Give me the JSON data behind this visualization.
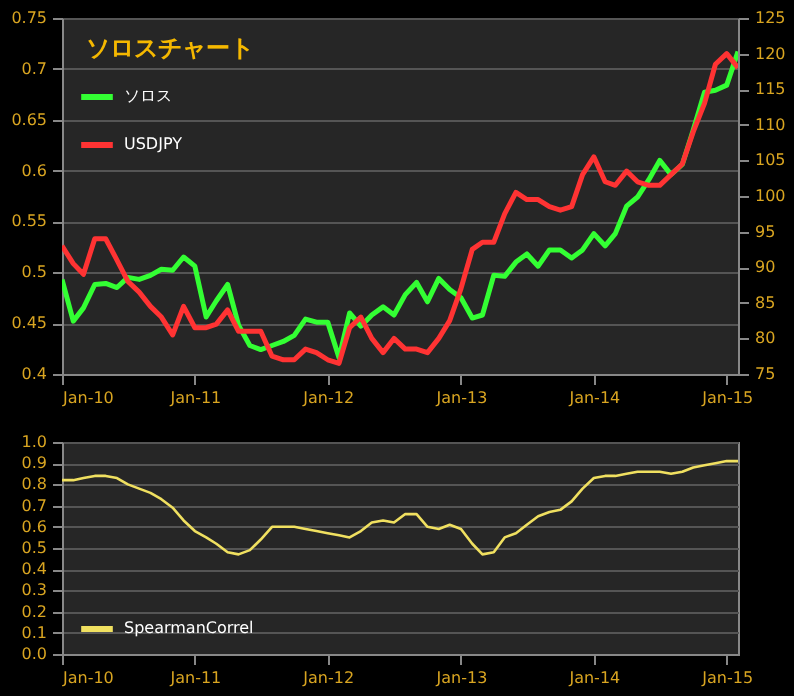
{
  "chart_data": [
    {
      "type": "line",
      "title": "ソロスチャート",
      "x": [
        "2010-01",
        "2010-02",
        "2010-03",
        "2010-04",
        "2010-05",
        "2010-06",
        "2010-07",
        "2010-08",
        "2010-09",
        "2010-10",
        "2010-11",
        "2010-12",
        "2011-01",
        "2011-02",
        "2011-03",
        "2011-04",
        "2011-05",
        "2011-06",
        "2011-07",
        "2011-08",
        "2011-09",
        "2011-10",
        "2011-11",
        "2011-12",
        "2012-01",
        "2012-02",
        "2012-03",
        "2012-04",
        "2012-05",
        "2012-06",
        "2012-07",
        "2012-08",
        "2012-09",
        "2012-10",
        "2012-11",
        "2012-12",
        "2013-01",
        "2013-02",
        "2013-03",
        "2013-04",
        "2013-05",
        "2013-06",
        "2013-07",
        "2013-08",
        "2013-09",
        "2013-10",
        "2013-11",
        "2013-12",
        "2014-01",
        "2014-02",
        "2014-03",
        "2014-04",
        "2014-05",
        "2014-06",
        "2014-07",
        "2014-08",
        "2014-09",
        "2014-10",
        "2014-11",
        "2014-12",
        "2015-01",
        "2015-02"
      ],
      "series": [
        {
          "name": "ソロス",
          "color": "#33ff33",
          "values": [
            0.493,
            0.452,
            0.465,
            0.488,
            0.489,
            0.485,
            0.495,
            0.493,
            0.497,
            0.503,
            0.502,
            0.515,
            0.506,
            0.456,
            0.472,
            0.488,
            0.448,
            0.428,
            0.424,
            0.428,
            0.432,
            0.438,
            0.454,
            0.451,
            0.451,
            0.416,
            0.46,
            0.447,
            0.458,
            0.466,
            0.458,
            0.478,
            0.49,
            0.471,
            0.494,
            0.483,
            0.475,
            0.455,
            0.458,
            0.497,
            0.496,
            0.51,
            0.518,
            0.506,
            0.522,
            0.522,
            0.514,
            0.522,
            0.538,
            0.526,
            0.538,
            0.565,
            0.574,
            0.591,
            0.61,
            0.596,
            0.606,
            0.64,
            0.677,
            0.679,
            0.684,
            0.717
          ]
        },
        {
          "name": "USDJPY",
          "color": "#ff3333",
          "axis": "y2",
          "values": [
            93,
            90.5,
            89,
            94,
            94,
            91,
            88,
            86.5,
            84.5,
            83,
            80.5,
            84.5,
            81.5,
            81.5,
            82,
            84,
            81,
            81,
            81,
            77.5,
            77,
            77,
            78.5,
            78,
            77,
            76.5,
            81.5,
            83,
            80,
            78,
            80,
            78.5,
            78.5,
            78,
            80,
            82.5,
            87,
            92.5,
            93.5,
            93.5,
            97.5,
            100.5,
            99.5,
            99.5,
            98.5,
            98,
            98.5,
            103,
            105.5,
            102,
            101.5,
            103.5,
            102,
            101.5,
            101.5,
            103,
            104.5,
            109,
            113,
            118.5,
            120,
            118
          ]
        }
      ],
      "xlim": [
        "2010-01",
        "2015-02"
      ],
      "xticks": [
        {
          "value": "2010-01",
          "label": "Jan-10"
        },
        {
          "value": "2011-01",
          "label": "Jan-11"
        },
        {
          "value": "2012-01",
          "label": "Jan-12"
        },
        {
          "value": "2013-01",
          "label": "Jan-13"
        },
        {
          "value": "2014-01",
          "label": "Jan-14"
        },
        {
          "value": "2015-01",
          "label": "Jan-15"
        }
      ],
      "ylim": [
        0.4,
        0.75
      ],
      "yticks": [
        0.4,
        0.45,
        0.5,
        0.55,
        0.6,
        0.65,
        0.7,
        0.75
      ],
      "y2lim": [
        75,
        125
      ],
      "y2ticks": [
        75,
        80,
        85,
        90,
        95,
        100,
        105,
        110,
        115,
        120,
        125
      ],
      "grid": "y",
      "legend": "top left",
      "marker": "none",
      "line_style": "solid"
    },
    {
      "type": "line",
      "x": [
        "2010-01",
        "2010-02",
        "2010-03",
        "2010-04",
        "2010-05",
        "2010-06",
        "2010-07",
        "2010-08",
        "2010-09",
        "2010-10",
        "2010-11",
        "2010-12",
        "2011-01",
        "2011-02",
        "2011-03",
        "2011-04",
        "2011-05",
        "2011-06",
        "2011-07",
        "2011-08",
        "2011-09",
        "2011-10",
        "2011-11",
        "2011-12",
        "2012-01",
        "2012-02",
        "2012-03",
        "2012-04",
        "2012-05",
        "2012-06",
        "2012-07",
        "2012-08",
        "2012-09",
        "2012-10",
        "2012-11",
        "2012-12",
        "2013-01",
        "2013-02",
        "2013-03",
        "2013-04",
        "2013-05",
        "2013-06",
        "2013-07",
        "2013-08",
        "2013-09",
        "2013-10",
        "2013-11",
        "2013-12",
        "2014-01",
        "2014-02",
        "2014-03",
        "2014-04",
        "2014-05",
        "2014-06",
        "2014-07",
        "2014-08",
        "2014-09",
        "2014-10",
        "2014-11",
        "2014-12",
        "2015-01",
        "2015-02"
      ],
      "series": [
        {
          "name": "SpearmanCorrel",
          "color": "#f0e060",
          "values": [
            0.82,
            0.82,
            0.83,
            0.84,
            0.84,
            0.83,
            0.8,
            0.78,
            0.76,
            0.73,
            0.69,
            0.63,
            0.58,
            0.55,
            0.52,
            0.48,
            0.47,
            0.49,
            0.54,
            0.6,
            0.6,
            0.6,
            0.59,
            0.58,
            0.57,
            0.56,
            0.55,
            0.58,
            0.62,
            0.63,
            0.62,
            0.66,
            0.66,
            0.6,
            0.59,
            0.61,
            0.59,
            0.52,
            0.47,
            0.48,
            0.55,
            0.57,
            0.61,
            0.65,
            0.67,
            0.68,
            0.72,
            0.78,
            0.83,
            0.84,
            0.84,
            0.85,
            0.86,
            0.86,
            0.86,
            0.85,
            0.86,
            0.88,
            0.89,
            0.9,
            0.91,
            0.91
          ]
        }
      ],
      "xlim": [
        "2010-01",
        "2015-02"
      ],
      "xticks": [
        {
          "value": "2010-01",
          "label": "Jan-10"
        },
        {
          "value": "2011-01",
          "label": "Jan-11"
        },
        {
          "value": "2012-01",
          "label": "Jan-12"
        },
        {
          "value": "2013-01",
          "label": "Jan-13"
        },
        {
          "value": "2014-01",
          "label": "Jan-14"
        },
        {
          "value": "2015-01",
          "label": "Jan-15"
        }
      ],
      "ylim": [
        0,
        1
      ],
      "yticks": [
        {
          "value": 0,
          "label": "0.0"
        },
        0.1,
        0.2,
        0.3,
        0.4,
        0.5,
        0.6,
        0.7,
        0.8,
        0.9,
        {
          "value": 1,
          "label": "1.0"
        }
      ],
      "grid": "y",
      "legend": "bottom left",
      "marker": "none",
      "line_style": "solid"
    }
  ]
}
